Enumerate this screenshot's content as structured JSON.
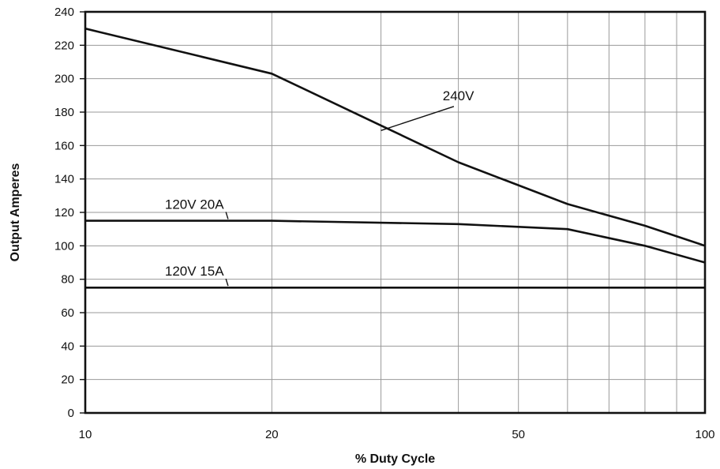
{
  "chart_data": {
    "type": "line",
    "xscale": "log",
    "xlim": [
      10,
      100
    ],
    "ylim": [
      0,
      240
    ],
    "xlabel": "% Duty Cycle",
    "ylabel": "Output Amperes",
    "x_ticks": [
      10,
      20,
      50,
      100
    ],
    "x_tick_labels": [
      "10",
      "20",
      "50",
      "100"
    ],
    "x_minor_grid": [
      30,
      40,
      60,
      70,
      80,
      90
    ],
    "y_ticks": [
      0,
      20,
      40,
      60,
      80,
      100,
      120,
      140,
      160,
      180,
      200,
      220,
      240
    ],
    "y_tick_labels": [
      "0",
      "20",
      "40",
      "60",
      "80",
      "100",
      "120",
      "140",
      "160",
      "180",
      "200",
      "220",
      "240"
    ],
    "grid": true,
    "colors": {
      "line": "#111111",
      "grid": "#9a9a9a"
    },
    "series": [
      {
        "name": "240V",
        "points": [
          [
            10,
            230
          ],
          [
            20,
            203
          ],
          [
            30,
            172
          ],
          [
            40,
            150
          ],
          [
            60,
            125
          ],
          [
            80,
            112
          ],
          [
            100,
            100
          ]
        ]
      },
      {
        "name": "120V 20A",
        "points": [
          [
            10,
            115
          ],
          [
            20,
            115
          ],
          [
            40,
            113
          ],
          [
            60,
            110
          ],
          [
            80,
            100
          ],
          [
            100,
            90
          ]
        ]
      },
      {
        "name": "120V 15A",
        "points": [
          [
            10,
            75
          ],
          [
            100,
            75
          ]
        ]
      }
    ],
    "annotations": [
      {
        "text": "240V",
        "series": 0,
        "label_at": [
          40,
          190
        ],
        "pointer_to": [
          30,
          169
        ]
      },
      {
        "text": "120V 20A",
        "series": 1,
        "label_at": [
          15,
          125
        ],
        "pointer_to": [
          17,
          116
        ]
      },
      {
        "text": "120V 15A",
        "series": 2,
        "label_at": [
          15,
          85
        ],
        "pointer_to": [
          17,
          76
        ]
      }
    ]
  }
}
